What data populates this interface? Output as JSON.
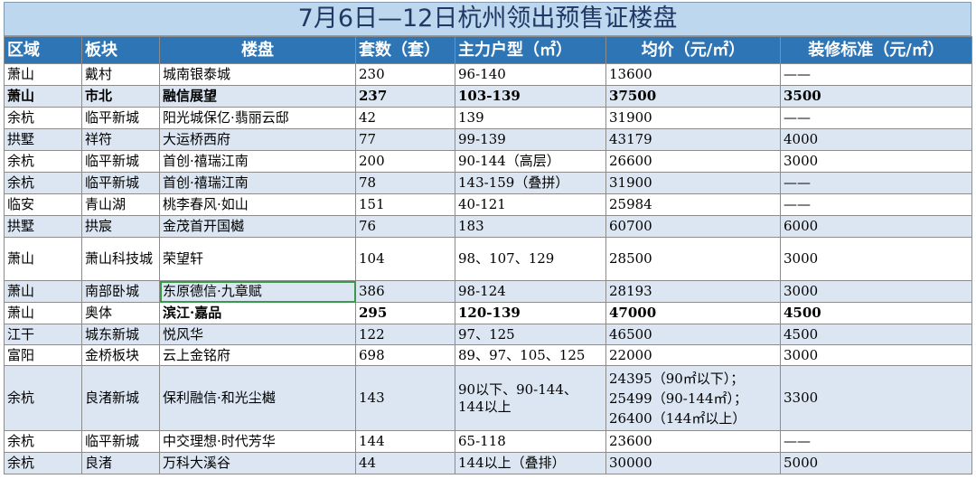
{
  "title": "7月6日—12日杭州领出预售证楼盘",
  "headers": [
    "区域",
    "板块",
    "楼盘",
    "套数（套）",
    "主力户型（㎡）",
    "均价（元/㎡）",
    "装修标准（元/㎡）"
  ],
  "rows": [
    {
      "area": "萧山",
      "block": "戴村",
      "project": "城南银泰城",
      "units": "230",
      "type": "96-140",
      "price": "13600",
      "deco": "——"
    },
    {
      "area": "萧山",
      "block": "市北",
      "project": "融信展望",
      "units": "237",
      "type": "103-139",
      "price": "37500",
      "deco": "3500"
    },
    {
      "area": "余杭",
      "block": "临平新城",
      "project": "阳光城保亿·翡丽云邸",
      "units": "42",
      "type": "139",
      "price": "31900",
      "deco": "——"
    },
    {
      "area": "拱墅",
      "block": "祥符",
      "project": "大运桥西府",
      "units": "77",
      "type": "99-139",
      "price": "43179",
      "deco": "4000"
    },
    {
      "area": "余杭",
      "block": "临平新城",
      "project": "首创·禧瑞江南",
      "units": "200",
      "type": "90-144（高层）",
      "price": "26600",
      "deco": "3000"
    },
    {
      "area": "余杭",
      "block": "临平新城",
      "project": "首创·禧瑞江南",
      "units": "78",
      "type": "143-159（叠拼）",
      "price": "31900",
      "deco": "——"
    },
    {
      "area": "临安",
      "block": "青山湖",
      "project": "桃李春风·如山",
      "units": "151",
      "type": "40-121",
      "price": "25984",
      "deco": "——"
    },
    {
      "area": "拱墅",
      "block": "拱宸",
      "project": "金茂首开国樾",
      "units": "76",
      "type": "183",
      "price": "60700",
      "deco": "6000"
    },
    {
      "area": "萧山",
      "block": "萧山科技城",
      "project": "荣望轩",
      "units": "104",
      "type": "98、107、129",
      "price": "28500",
      "deco": "3000"
    },
    {
      "area": "萧山",
      "block": "南部卧城",
      "project": "东原德信·九章赋",
      "units": "386",
      "type": "98-124",
      "price": "28193",
      "deco": "3000"
    },
    {
      "area": "萧山",
      "block": "奥体",
      "project": "滨江·嘉品",
      "units": "295",
      "type": "120-139",
      "price": "47000",
      "deco": "4500"
    },
    {
      "area": "江干",
      "block": "城东新城",
      "project": "悦风华",
      "units": "122",
      "type": "97、125",
      "price": "46500",
      "deco": "4500"
    },
    {
      "area": "富阳",
      "block": "金桥板块",
      "project": "云上金铭府",
      "units": "698",
      "type": "89、97、105、125",
      "price": "22000",
      "deco": "3000"
    },
    {
      "area": "余杭",
      "block": "良渚新城",
      "project": "保利融信·和光尘樾",
      "units": "143",
      "type": "90以下、90-144、144以上",
      "price": "24395（90㎡以下）；25499（90-144㎡）；26400（144㎡以上）",
      "deco": "3300"
    },
    {
      "area": "余杭",
      "block": "临平新城",
      "project": "中交理想·时代芳华",
      "units": "144",
      "type": "65-118",
      "price": "23600",
      "deco": "——"
    },
    {
      "area": "余杭",
      "block": "良渚",
      "project": "万科大溪谷",
      "units": "44",
      "type": "144以上（叠排）",
      "price": "30000",
      "deco": "5000"
    }
  ]
}
